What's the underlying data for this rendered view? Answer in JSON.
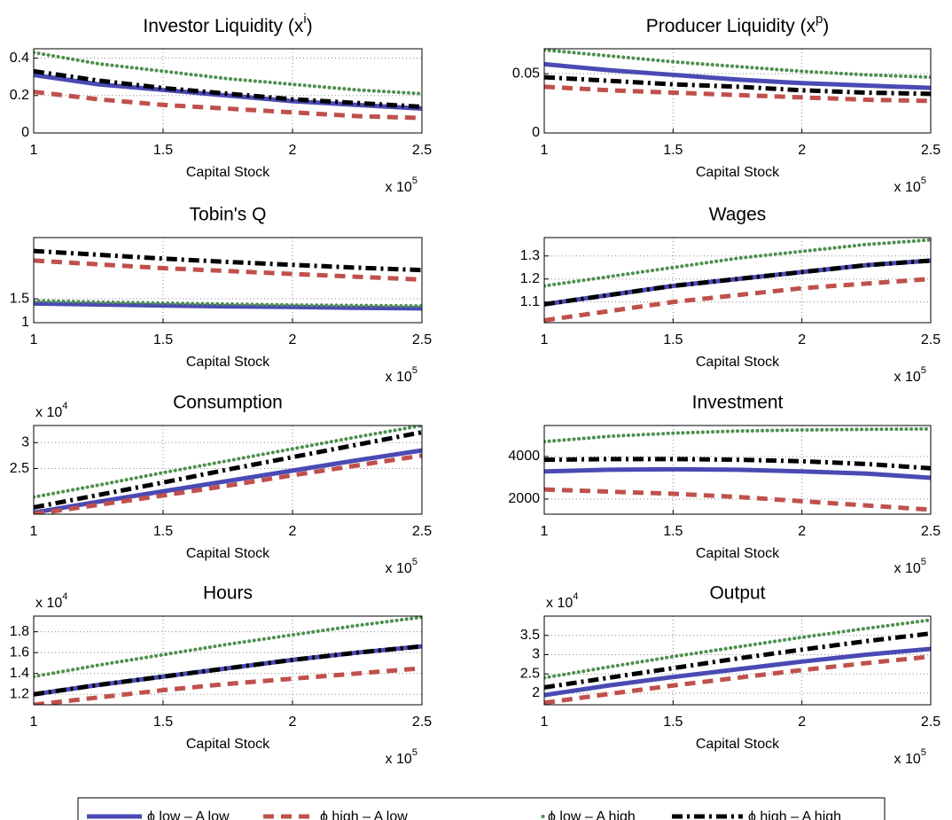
{
  "legend": {
    "series": [
      {
        "name": "ϕ low – A low",
        "color": "#4a4ab4",
        "style": "solid"
      },
      {
        "name": "ϕ high – A low",
        "color": "#c0504d",
        "style": "dashed"
      },
      {
        "name": "ϕ low – A high",
        "color": "#4e8f4e",
        "style": "dotted"
      },
      {
        "name": "ϕ high – A high",
        "color": "#000000",
        "style": "dashdot"
      }
    ]
  },
  "chart_data": [
    {
      "type": "line",
      "title": [
        "Investor Liquidity (x",
        "i",
        ")"
      ],
      "x_label": "Capital Stock",
      "x_multiplier": [
        "x 10",
        "5"
      ],
      "grid": true,
      "x": [
        1,
        1.25,
        1.5,
        1.75,
        2,
        2.25,
        2.5
      ],
      "xlim": [
        1,
        2.5
      ],
      "xticks": [
        1,
        1.5,
        2,
        2.5
      ],
      "ylim": [
        0,
        0.45
      ],
      "yticks": [
        0,
        0.2,
        0.4
      ],
      "series": [
        {
          "values": [
            0.31,
            0.26,
            0.23,
            0.2,
            0.17,
            0.15,
            0.13
          ]
        },
        {
          "values": [
            0.22,
            0.18,
            0.15,
            0.13,
            0.11,
            0.09,
            0.08
          ]
        },
        {
          "values": [
            0.43,
            0.37,
            0.33,
            0.29,
            0.26,
            0.23,
            0.21
          ]
        },
        {
          "values": [
            0.33,
            0.28,
            0.24,
            0.21,
            0.18,
            0.16,
            0.14
          ]
        }
      ]
    },
    {
      "type": "line",
      "title": [
        "Producer Liquidity (x",
        "p",
        ")"
      ],
      "x_label": "Capital Stock",
      "x_multiplier": [
        "x 10",
        "5"
      ],
      "grid": true,
      "x": [
        1,
        1.25,
        1.5,
        1.75,
        2,
        2.25,
        2.5
      ],
      "xlim": [
        1,
        2.5
      ],
      "xticks": [
        1,
        1.5,
        2,
        2.5
      ],
      "ylim": [
        0,
        0.071
      ],
      "yticks": [
        0,
        0.05
      ],
      "series": [
        {
          "values": [
            0.058,
            0.053,
            0.049,
            0.045,
            0.042,
            0.04,
            0.038
          ]
        },
        {
          "values": [
            0.039,
            0.036,
            0.034,
            0.032,
            0.03,
            0.028,
            0.027
          ]
        },
        {
          "values": [
            0.07,
            0.065,
            0.06,
            0.056,
            0.052,
            0.049,
            0.047
          ]
        },
        {
          "values": [
            0.047,
            0.044,
            0.041,
            0.039,
            0.036,
            0.034,
            0.033
          ]
        }
      ]
    },
    {
      "type": "line",
      "title": "Tobin's Q",
      "x_label": "Capital Stock",
      "x_multiplier": [
        "x 10",
        "5"
      ],
      "grid": true,
      "x": [
        1,
        1.25,
        1.5,
        1.75,
        2,
        2.25,
        2.5
      ],
      "xlim": [
        1,
        2.5
      ],
      "xticks": [
        1,
        1.5,
        2,
        2.5
      ],
      "ylim": [
        1,
        2.78
      ],
      "yticks": [
        1,
        1.5
      ],
      "series": [
        {
          "values": [
            1.4,
            1.38,
            1.36,
            1.34,
            1.33,
            1.31,
            1.3
          ]
        },
        {
          "values": [
            2.3,
            2.22,
            2.14,
            2.08,
            2.02,
            1.96,
            1.9
          ]
        },
        {
          "values": [
            1.46,
            1.43,
            1.41,
            1.39,
            1.37,
            1.36,
            1.35
          ]
        },
        {
          "values": [
            2.5,
            2.42,
            2.34,
            2.27,
            2.21,
            2.15,
            2.1
          ]
        }
      ]
    },
    {
      "type": "line",
      "title": "Wages",
      "x_label": "Capital Stock",
      "x_multiplier": [
        "x 10",
        "5"
      ],
      "grid": true,
      "x": [
        1,
        1.25,
        1.5,
        1.75,
        2,
        2.25,
        2.5
      ],
      "xlim": [
        1,
        2.5
      ],
      "xticks": [
        1,
        1.5,
        2,
        2.5
      ],
      "ylim": [
        1.01,
        1.38
      ],
      "yticks": [
        1.1,
        1.2,
        1.3
      ],
      "series": [
        {
          "values": [
            1.09,
            1.13,
            1.17,
            1.2,
            1.23,
            1.26,
            1.28
          ]
        },
        {
          "values": [
            1.02,
            1.06,
            1.1,
            1.13,
            1.16,
            1.18,
            1.2
          ]
        },
        {
          "values": [
            1.17,
            1.21,
            1.25,
            1.29,
            1.32,
            1.35,
            1.37
          ]
        },
        {
          "values": [
            1.09,
            1.13,
            1.17,
            1.2,
            1.23,
            1.26,
            1.28
          ]
        }
      ]
    },
    {
      "type": "line",
      "title": "Consumption",
      "x_label": "Capital Stock",
      "x_multiplier": [
        "x 10",
        "5"
      ],
      "y_multiplier": [
        "x 10",
        "4"
      ],
      "grid": true,
      "x": [
        1,
        1.25,
        1.5,
        1.75,
        2,
        2.25,
        2.5
      ],
      "xlim": [
        1,
        2.5
      ],
      "xticks": [
        1,
        1.5,
        2,
        2.5
      ],
      "ylim": [
        1.62,
        3.33
      ],
      "yticks": [
        2.5,
        3
      ],
      "series": [
        {
          "values": [
            1.65,
            1.86,
            2.06,
            2.26,
            2.46,
            2.66,
            2.85
          ]
        },
        {
          "values": [
            1.62,
            1.8,
            1.98,
            2.17,
            2.37,
            2.56,
            2.75
          ]
        },
        {
          "values": [
            1.95,
            2.18,
            2.42,
            2.65,
            2.88,
            3.11,
            3.33
          ]
        },
        {
          "values": [
            1.75,
            1.99,
            2.23,
            2.48,
            2.72,
            2.96,
            3.2
          ]
        }
      ]
    },
    {
      "type": "line",
      "title": "Investment",
      "x_label": "Capital Stock",
      "x_multiplier": [
        "x 10",
        "5"
      ],
      "grid": true,
      "x": [
        1,
        1.25,
        1.5,
        1.75,
        2,
        2.25,
        2.5
      ],
      "xlim": [
        1,
        2.5
      ],
      "xticks": [
        1,
        1.5,
        2,
        2.5
      ],
      "ylim": [
        1290,
        5460
      ],
      "yticks": [
        2000,
        4000
      ],
      "series": [
        {
          "values": [
            3300,
            3380,
            3400,
            3380,
            3300,
            3200,
            3000
          ]
        },
        {
          "values": [
            2450,
            2350,
            2250,
            2100,
            1900,
            1700,
            1500
          ]
        },
        {
          "values": [
            4700,
            4950,
            5100,
            5200,
            5250,
            5280,
            5300
          ]
        },
        {
          "values": [
            3850,
            3880,
            3880,
            3850,
            3780,
            3650,
            3450
          ]
        }
      ]
    },
    {
      "type": "line",
      "title": "Hours",
      "x_label": "Capital Stock",
      "x_multiplier": [
        "x 10",
        "5"
      ],
      "y_multiplier": [
        "x 10",
        "4"
      ],
      "grid": true,
      "x": [
        1,
        1.25,
        1.5,
        1.75,
        2,
        2.25,
        2.5
      ],
      "xlim": [
        1,
        2.5
      ],
      "xticks": [
        1,
        1.5,
        2,
        2.5
      ],
      "ylim": [
        1.1,
        1.95
      ],
      "yticks": [
        1.2,
        1.4,
        1.6,
        1.8
      ],
      "series": [
        {
          "values": [
            1.2,
            1.29,
            1.37,
            1.45,
            1.53,
            1.6,
            1.66
          ]
        },
        {
          "values": [
            1.1,
            1.17,
            1.24,
            1.3,
            1.35,
            1.4,
            1.45
          ]
        },
        {
          "values": [
            1.37,
            1.48,
            1.58,
            1.68,
            1.77,
            1.86,
            1.94
          ]
        },
        {
          "values": [
            1.2,
            1.29,
            1.37,
            1.45,
            1.53,
            1.6,
            1.66
          ]
        }
      ]
    },
    {
      "type": "line",
      "title": "Output",
      "x_label": "Capital Stock",
      "x_multiplier": [
        "x 10",
        "5"
      ],
      "y_multiplier": [
        "x 10",
        "4"
      ],
      "grid": true,
      "x": [
        1,
        1.25,
        1.5,
        1.75,
        2,
        2.25,
        2.5
      ],
      "xlim": [
        1,
        2.5
      ],
      "xticks": [
        1,
        1.5,
        2,
        2.5
      ],
      "ylim": [
        1.7,
        4.0
      ],
      "yticks": [
        2,
        2.5,
        3,
        3.5
      ],
      "series": [
        {
          "values": [
            1.95,
            2.2,
            2.42,
            2.62,
            2.82,
            3.0,
            3.15
          ]
        },
        {
          "values": [
            1.75,
            1.98,
            2.2,
            2.4,
            2.6,
            2.78,
            2.95
          ]
        },
        {
          "values": [
            2.4,
            2.68,
            2.95,
            3.2,
            3.45,
            3.68,
            3.9
          ]
        },
        {
          "values": [
            2.15,
            2.4,
            2.65,
            2.9,
            3.13,
            3.35,
            3.55
          ]
        }
      ]
    }
  ]
}
